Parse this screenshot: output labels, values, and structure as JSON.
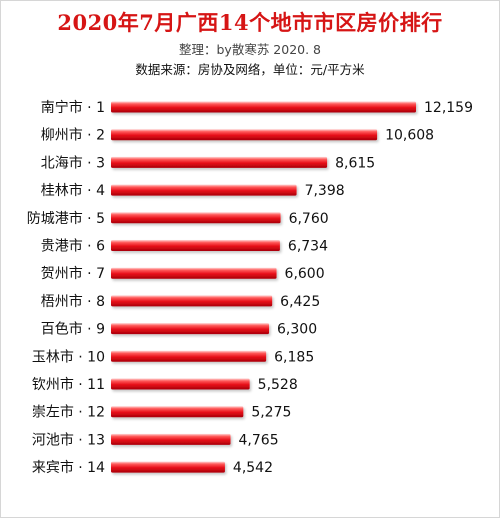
{
  "chart_data": {
    "type": "bar",
    "orientation": "horizontal",
    "title": "2020年7月广西14个地市市区房价排行",
    "subtitle": "整理：by散寒苏  2020. 8",
    "source_note": "数据来源：房协及网络，单位：元/平方米",
    "categories": [
      "南宁市 · 1",
      "柳州市 · 2",
      "北海市 · 3",
      "桂林市 · 4",
      "防城港市 · 5",
      "贵港市 · 6",
      "贺州市 · 7",
      "梧州市 · 8",
      "百色市 · 9",
      "玉林市 · 10",
      "钦州市 · 11",
      "崇左市 · 12",
      "河池市 · 13",
      "来宾市 · 14"
    ],
    "values": [
      12159,
      10608,
      8615,
      7398,
      6760,
      6734,
      6600,
      6425,
      6300,
      6185,
      5528,
      5275,
      4765,
      4542
    ],
    "value_labels": [
      "12,159",
      "10,608",
      "8,615",
      "7,398",
      "6,760",
      "6,734",
      "6,600",
      "6,425",
      "6,300",
      "6,185",
      "5,528",
      "5,275",
      "4,765",
      "4,542"
    ],
    "xlim": [
      0,
      12159
    ],
    "grid": false,
    "legend": "none",
    "bar_color": "#e8101a"
  }
}
